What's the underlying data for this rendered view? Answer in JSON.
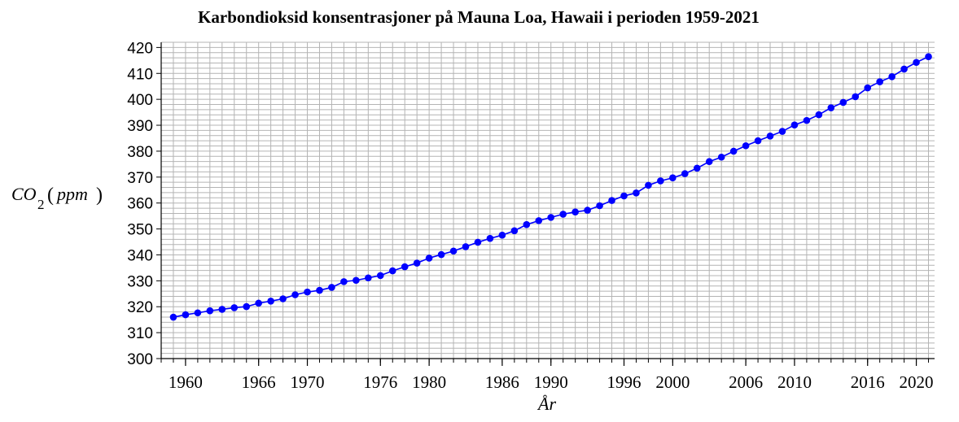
{
  "chart_data": {
    "type": "line",
    "title": "Karbondioksid konsentrasjoner på Mauna Loa, Hawaii i perioden 1959-2021",
    "xlabel": "År",
    "ylabel": {
      "main": "CO",
      "sub": "2",
      "unit": "ppm"
    },
    "xlim": [
      1958,
      2021.5
    ],
    "ylim": [
      300,
      422
    ],
    "xticks": [
      1960,
      1966,
      1970,
      1976,
      1980,
      1986,
      1990,
      1996,
      2000,
      2006,
      2010,
      2016,
      2020
    ],
    "yticks": [
      300,
      310,
      320,
      330,
      340,
      350,
      360,
      370,
      380,
      390,
      400,
      410,
      420
    ],
    "grid": true,
    "series_color": "#0000ff",
    "series": [
      {
        "x": [
          1959,
          1960,
          1961,
          1962,
          1963,
          1964,
          1965,
          1966,
          1967,
          1968,
          1969,
          1970,
          1971,
          1972,
          1973,
          1974,
          1975,
          1976,
          1977,
          1978,
          1979,
          1980,
          1981,
          1982,
          1983,
          1984,
          1985,
          1986,
          1987,
          1988,
          1989,
          1990,
          1991,
          1992,
          1993,
          1994,
          1995,
          1996,
          1997,
          1998,
          1999,
          2000,
          2001,
          2002,
          2003,
          2004,
          2005,
          2006,
          2007,
          2008,
          2009,
          2010,
          2011,
          2012,
          2013,
          2014,
          2015,
          2016,
          2017,
          2018,
          2019,
          2020,
          2021
        ],
        "values": [
          315.98,
          316.91,
          317.64,
          318.45,
          318.99,
          319.62,
          320.04,
          321.37,
          322.18,
          323.05,
          324.62,
          325.68,
          326.32,
          327.46,
          329.68,
          330.19,
          331.13,
          332.03,
          333.84,
          335.41,
          336.84,
          338.76,
          340.12,
          341.48,
          343.15,
          344.87,
          346.35,
          347.61,
          349.31,
          351.69,
          353.2,
          354.45,
          355.7,
          356.54,
          357.21,
          358.96,
          360.97,
          362.74,
          363.88,
          366.84,
          368.54,
          369.71,
          371.32,
          373.45,
          375.98,
          377.7,
          379.98,
          382.09,
          384.02,
          385.83,
          387.64,
          390.1,
          391.85,
          394.06,
          396.74,
          398.81,
          401.01,
          404.41,
          406.76,
          408.72,
          411.66,
          414.24,
          416.45
        ]
      }
    ]
  }
}
